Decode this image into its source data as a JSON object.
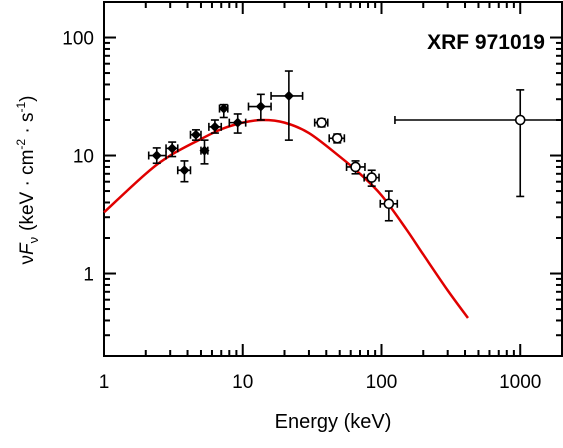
{
  "chart_data": {
    "type": "scatter",
    "title": "XRF 971019",
    "xlabel": "Energy (keV)",
    "ylabel_parts": {
      "nu": "ν",
      "F": "F",
      "sub": "ν",
      "pre": "(keV · cm",
      "exp1": "-2",
      "mid": " · s",
      "exp2": "-1",
      "post": ")"
    },
    "x_scale": "log",
    "y_scale": "log",
    "xlim": [
      1,
      2000
    ],
    "ylim": [
      0.2,
      200
    ],
    "x_ticks": [
      {
        "value": 1,
        "label": "1"
      },
      {
        "value": 10,
        "label": "10"
      },
      {
        "value": 100,
        "label": "100"
      },
      {
        "value": 1000,
        "label": "1000"
      }
    ],
    "y_ticks": [
      {
        "value": 1,
        "label": "1"
      },
      {
        "value": 10,
        "label": "10"
      },
      {
        "value": 100,
        "label": "100"
      }
    ],
    "grid": false,
    "series": [
      {
        "marker": "filled-diamond",
        "color": "#000000",
        "points": [
          {
            "x": 2.4,
            "y": 10.0,
            "xlo": 2.1,
            "xhi": 2.8,
            "ylo": 8.6,
            "yhi": 11.6
          },
          {
            "x": 3.1,
            "y": 11.5,
            "xlo": 2.8,
            "xhi": 3.4,
            "ylo": 9.8,
            "yhi": 13.0
          },
          {
            "x": 3.8,
            "y": 7.5,
            "xlo": 3.4,
            "xhi": 4.2,
            "ylo": 6.0,
            "yhi": 9.0
          },
          {
            "x": 4.6,
            "y": 15.0,
            "xlo": 4.2,
            "xhi": 5.0,
            "ylo": 13.5,
            "yhi": 16.5
          },
          {
            "x": 5.3,
            "y": 11.0,
            "xlo": 5.0,
            "xhi": 5.6,
            "ylo": 8.5,
            "yhi": 13.5
          },
          {
            "x": 6.3,
            "y": 17.5,
            "xlo": 5.7,
            "xhi": 7.0,
            "ylo": 15.5,
            "yhi": 20.0
          },
          {
            "x": 7.3,
            "y": 25.0,
            "xlo": 6.8,
            "xhi": 7.8,
            "ylo": 21.0,
            "yhi": 27.0
          },
          {
            "x": 9.2,
            "y": 19.0,
            "xlo": 8.0,
            "xhi": 10.5,
            "ylo": 15.5,
            "yhi": 22.5
          },
          {
            "x": 13.5,
            "y": 26.0,
            "xlo": 11.0,
            "xhi": 16.0,
            "ylo": 20.0,
            "yhi": 33.0
          },
          {
            "x": 21.5,
            "y": 32.0,
            "xlo": 16.0,
            "xhi": 27.0,
            "ylo": 13.5,
            "yhi": 52.0
          }
        ]
      },
      {
        "marker": "open-circle",
        "color": "#000000",
        "points": [
          {
            "x": 37,
            "y": 19.0,
            "xlo": 33,
            "xhi": 41,
            "ylo": 17.5,
            "yhi": 20.5
          },
          {
            "x": 48,
            "y": 14.0,
            "xlo": 42,
            "xhi": 54,
            "ylo": 12.8,
            "yhi": 15.2
          },
          {
            "x": 65,
            "y": 8.0,
            "xlo": 56,
            "xhi": 76,
            "ylo": 7.0,
            "yhi": 9.0
          },
          {
            "x": 85,
            "y": 6.5,
            "xlo": 75,
            "xhi": 96,
            "ylo": 5.5,
            "yhi": 7.5
          },
          {
            "x": 113,
            "y": 3.9,
            "xlo": 98,
            "xhi": 130,
            "ylo": 2.8,
            "yhi": 5.0
          },
          {
            "x": 1000,
            "y": 20.0,
            "xlo": 125,
            "xhi": 2000,
            "ylo": 4.5,
            "yhi": 36.0
          }
        ]
      }
    ],
    "model_curve": {
      "color": "#e00000",
      "x": [
        1,
        2,
        3,
        5,
        7,
        10,
        14,
        20,
        30,
        50,
        70,
        100,
        150,
        200,
        300,
        420
      ],
      "y": [
        3.3,
        7.0,
        10.0,
        13.8,
        16.7,
        19.0,
        20.0,
        19.0,
        15.5,
        9.8,
        7.0,
        4.6,
        2.4,
        1.45,
        0.72,
        0.42
      ]
    }
  }
}
